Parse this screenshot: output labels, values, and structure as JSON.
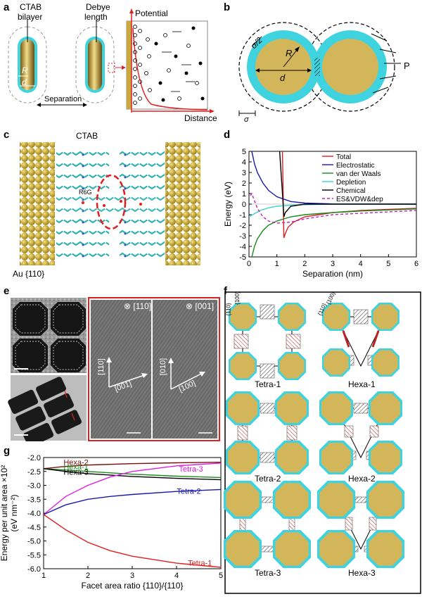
{
  "panels": {
    "a": "a",
    "b": "b",
    "c": "c",
    "d": "d",
    "e": "e",
    "f": "f",
    "g": "g"
  },
  "a": {
    "ctab": "CTAB",
    "bilayer": "bilayer",
    "debye": "Debye",
    "length": "length",
    "potential": "Potential",
    "distance": "Distance",
    "separation": "Separation",
    "R": "R",
    "d": "d"
  },
  "b": {
    "sigma_half": "σ/2",
    "R": "R",
    "d": "d",
    "P": "P",
    "sigma": "σ"
  },
  "c": {
    "ctab": "CTAB",
    "r6g": "R6G",
    "au": "Au {110}"
  },
  "e": {
    "dir1": "⊗ [110]",
    "dir2": "⊗ [001]",
    "ax1a": "[110]",
    "ax1b": "[001]",
    "ax2a": "[010]",
    "ax2b": "[100]"
  },
  "f": {
    "configs": [
      "Tetra-1",
      "Hexa-1",
      "Tetra-2",
      "Hexa-2",
      "Tetra-3",
      "Hexa-3"
    ],
    "facet_a": "{110}",
    "facet_b": "{100}",
    "facet_c": "{110}",
    "facet_d": "{100}"
  },
  "colors": {
    "gold": "#d4b65a",
    "cyan": "#3fd3e0",
    "red": "#e02020",
    "blue": "#1a1aa8",
    "green": "#1a8a1a",
    "magenta": "#e020e0"
  },
  "chart_data": [
    {
      "panel": "d",
      "type": "line",
      "xlabel": "Separation (nm)",
      "ylabel": "Energy (eV)",
      "xlim": [
        0,
        6
      ],
      "ylim": [
        -5,
        5
      ],
      "xticks": [
        0,
        1,
        2,
        3,
        4,
        5,
        6
      ],
      "yticks": [
        -5,
        -4,
        -3,
        -2,
        -1,
        0,
        1,
        2,
        3,
        4,
        5
      ],
      "legend_position": "top-right",
      "series": [
        {
          "name": "Total",
          "color": "#e02020",
          "x": [
            1.2,
            1.25,
            1.3,
            1.4,
            1.6,
            2,
            3,
            4,
            5,
            6
          ],
          "y": [
            5,
            -3.2,
            -2.8,
            -2.2,
            -1.7,
            -1.2,
            -0.8,
            -0.6,
            -0.5,
            -0.4
          ]
        },
        {
          "name": "Electrostatic",
          "color": "#1a1aa8",
          "x": [
            0.1,
            0.2,
            0.3,
            0.5,
            0.7,
            1,
            1.5,
            2,
            3,
            6
          ],
          "y": [
            5,
            3.8,
            3,
            2,
            1.3,
            0.7,
            0.25,
            0.1,
            0.02,
            0
          ]
        },
        {
          "name": "van der Waals",
          "color": "#1a8a1a",
          "x": [
            0.1,
            0.2,
            0.3,
            0.5,
            0.7,
            1,
            1.5,
            2,
            3,
            4,
            5,
            6
          ],
          "y": [
            -5,
            -4,
            -3.3,
            -2.5,
            -2,
            -1.6,
            -1.2,
            -1,
            -0.8,
            -0.65,
            -0.55,
            -0.45
          ]
        },
        {
          "name": "Depletion",
          "color": "#40d0d0",
          "x": [
            0,
            0.2,
            0.4,
            0.7,
            1,
            1.5,
            2,
            3,
            6
          ],
          "y": [
            -1.2,
            -0.9,
            -0.6,
            -0.35,
            -0.2,
            -0.1,
            -0.05,
            0,
            0
          ]
        },
        {
          "name": "Chemical",
          "color": "#000000",
          "x": [
            1.1,
            1.15,
            1.2,
            1.25,
            1.3,
            1.5,
            2,
            6
          ],
          "y": [
            5,
            3,
            1,
            -1.2,
            -0.8,
            -0.2,
            0,
            0
          ]
        },
        {
          "name": "ES&VDW&dep",
          "color": "#c020c0",
          "dashed": true,
          "x": [
            0.05,
            0.1,
            0.2,
            0.3,
            0.5,
            0.7,
            1,
            1.5,
            2,
            3,
            6
          ],
          "y": [
            0.8,
            1,
            0.3,
            -0.4,
            -1.2,
            -1.6,
            -1.8,
            -1.7,
            -1.4,
            -1,
            -0.6
          ]
        }
      ]
    },
    {
      "panel": "g",
      "type": "line",
      "xlabel": "Facet area ratio {110}/{110}",
      "ylabel": "Energy per unit area ×10²",
      "ylabel2": "(eV nm⁻²)",
      "xlim": [
        1,
        5
      ],
      "ylim": [
        -6,
        -2
      ],
      "xticks": [
        1,
        2,
        3,
        4,
        5
      ],
      "yticks": [
        -6,
        -5.5,
        -5,
        -4.5,
        -4,
        -3.5,
        -3,
        -2.5,
        -2
      ],
      "series": [
        {
          "name": "Hexa-2",
          "color": "#7a1010",
          "x": [
            1,
            1.5,
            2,
            3,
            4,
            5
          ],
          "y": [
            -2.4,
            -2.32,
            -2.27,
            -2.22,
            -2.19,
            -2.17
          ]
        },
        {
          "name": "Hexa-1",
          "color": "#1a8a1a",
          "x": [
            1,
            1.5,
            2,
            3,
            4,
            5
          ],
          "y": [
            -2.4,
            -2.45,
            -2.5,
            -2.6,
            -2.67,
            -2.72
          ]
        },
        {
          "name": "Hexa-3",
          "color": "#000000",
          "x": [
            1,
            1.5,
            2,
            3,
            4,
            5
          ],
          "y": [
            -2.4,
            -2.5,
            -2.58,
            -2.68,
            -2.75,
            -2.8
          ]
        },
        {
          "name": "Tetra-3",
          "color": "#e020e0",
          "x": [
            1,
            1.5,
            2,
            2.5,
            3,
            4,
            5
          ],
          "y": [
            -4.05,
            -3.4,
            -3,
            -2.7,
            -2.5,
            -2.3,
            -2.2
          ]
        },
        {
          "name": "Tetra-2",
          "color": "#1a1aa8",
          "x": [
            1,
            1.5,
            2,
            2.5,
            3,
            4,
            5
          ],
          "y": [
            -4.05,
            -3.7,
            -3.5,
            -3.4,
            -3.33,
            -3.22,
            -3.15
          ]
        },
        {
          "name": "Tetra-1",
          "color": "#e02020",
          "x": [
            1,
            1.5,
            2,
            2.5,
            3,
            4,
            5
          ],
          "y": [
            -4.05,
            -4.6,
            -5.05,
            -5.35,
            -5.55,
            -5.8,
            -5.95
          ]
        }
      ]
    }
  ]
}
